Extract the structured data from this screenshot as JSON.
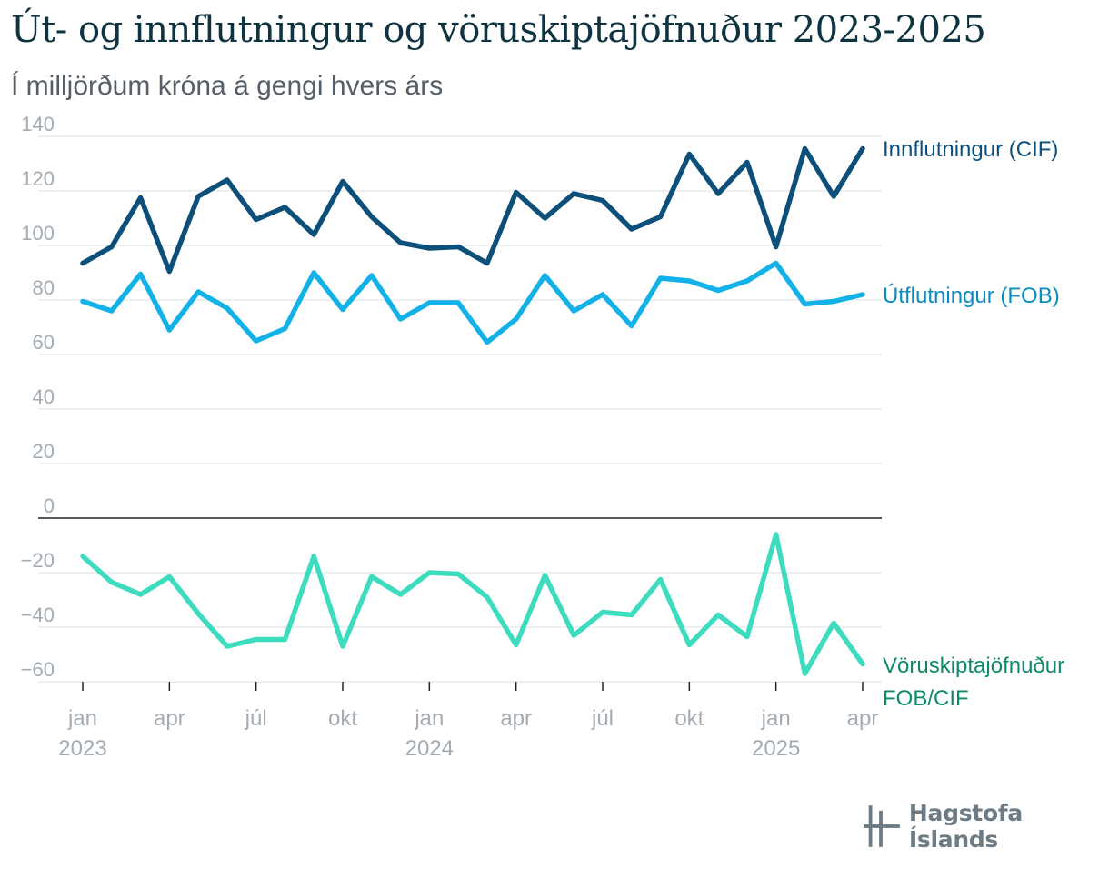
{
  "title": "Út- og innflutningur og vöruskiptajöfnuður 2023-2025",
  "subtitle": "Í milljörðum króna á gengi hvers árs",
  "logo_text": "Hagstofa Íslands",
  "chart_data": {
    "type": "line",
    "ylim": [
      -60,
      140
    ],
    "yticks": [
      "140",
      "120",
      "100",
      "80",
      "60",
      "40",
      "20",
      "0",
      "−20",
      "−40",
      "−60"
    ],
    "ytick_values": [
      140,
      120,
      100,
      80,
      60,
      40,
      20,
      0,
      -20,
      -40,
      -60
    ],
    "x": [
      "2023-01",
      "2023-02",
      "2023-03",
      "2023-04",
      "2023-05",
      "2023-06",
      "2023-07",
      "2023-08",
      "2023-09",
      "2023-10",
      "2023-11",
      "2023-12",
      "2024-01",
      "2024-02",
      "2024-03",
      "2024-04",
      "2024-05",
      "2024-06",
      "2024-07",
      "2024-08",
      "2024-09",
      "2024-10",
      "2024-11",
      "2024-12",
      "2025-01",
      "2025-02",
      "2025-03",
      "2025-04"
    ],
    "xticks": [
      {
        "index": 0,
        "label": "jan",
        "year": "2023"
      },
      {
        "index": 3,
        "label": "apr",
        "year": ""
      },
      {
        "index": 6,
        "label": "júl",
        "year": ""
      },
      {
        "index": 9,
        "label": "okt",
        "year": ""
      },
      {
        "index": 12,
        "label": "jan",
        "year": "2024"
      },
      {
        "index": 15,
        "label": "apr",
        "year": ""
      },
      {
        "index": 18,
        "label": "júl",
        "year": ""
      },
      {
        "index": 21,
        "label": "okt",
        "year": ""
      },
      {
        "index": 24,
        "label": "jan",
        "year": "2025"
      },
      {
        "index": 27,
        "label": "apr",
        "year": ""
      }
    ],
    "grid": true,
    "series": [
      {
        "name": "Innflutningur (CIF)",
        "label_lines": [
          "Innflutningur (CIF)"
        ],
        "color": "#0b4f7a",
        "label_color": "#0b4f7a",
        "values": [
          93.5,
          99.5,
          117.5,
          90.5,
          118,
          124,
          109.5,
          114,
          104,
          123.5,
          110.5,
          101,
          99,
          99.5,
          93.5,
          119.5,
          110,
          119,
          116.5,
          106,
          110.5,
          133.5,
          119,
          130.5,
          99.5,
          135.5,
          118,
          135.5
        ]
      },
      {
        "name": "Útflutningur (FOB)",
        "label_lines": [
          "Útflutningur (FOB)"
        ],
        "color": "#12b2e8",
        "label_color": "#0a8cc0",
        "values": [
          79.5,
          76,
          89.5,
          69,
          83,
          77,
          65,
          69.5,
          90,
          76.5,
          89,
          73,
          79,
          79,
          64.5,
          73,
          89,
          76,
          82,
          70.5,
          88,
          87,
          83.5,
          87,
          93.5,
          78.5,
          79.5,
          82
        ]
      },
      {
        "name": "Vöruskiptajöfnuður FOB/CIF",
        "label_lines": [
          "Vöruskiptajöfnuður",
          "FOB/CIF"
        ],
        "color": "#3ddcbf",
        "label_color": "#0e8a6a",
        "values": [
          -14,
          -23.5,
          -28,
          -21.5,
          -35,
          -47,
          -44.5,
          -44.5,
          -14,
          -47,
          -21.5,
          -28,
          -20,
          -20.5,
          -29,
          -46.5,
          -21,
          -43,
          -34.5,
          -35.5,
          -22.5,
          -46.5,
          -35.5,
          -43.5,
          -6,
          -57,
          -38.5,
          -53.5
        ]
      }
    ]
  }
}
